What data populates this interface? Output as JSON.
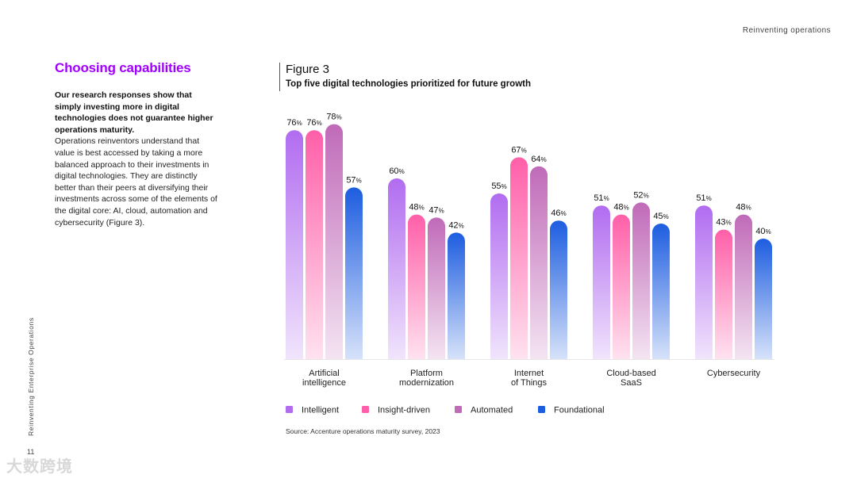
{
  "header": {
    "section": "Reinventing operations"
  },
  "side": {
    "vertical_title": "Reinventing Enterprise Operations",
    "page_number": "11",
    "watermark": "大数跨境"
  },
  "left": {
    "title": "Choosing capabilities",
    "intro_bold": "Our research responses show that simply investing more in digital technologies does not guarantee higher operations maturity.",
    "body": "Operations reinventors understand that value is best accessed by taking a more balanced approach to their investments in digital technologies. They are distinctly better than their peers at diversifying their investments across some of the elements of the digital core: AI, cloud, automation and cybersecurity (Figure 3)."
  },
  "figure": {
    "number": "Figure 3",
    "title": "Top five digital technologies prioritized for future growth",
    "source": "Source: Accenture operations maturity survey, 2023"
  },
  "chart_data": {
    "type": "bar",
    "title": "Top five digital technologies prioritized for future growth",
    "unit": "%",
    "categories": [
      [
        "Artificial",
        "intelligence"
      ],
      [
        "Platform",
        "modernization"
      ],
      [
        "Internet",
        "of Things"
      ],
      [
        "Cloud-based",
        "SaaS"
      ],
      [
        "Cybersecurity"
      ]
    ],
    "series": [
      {
        "name": "Intelligent",
        "color": "#b16cf0",
        "values": [
          76,
          60,
          55,
          51,
          51
        ]
      },
      {
        "name": "Insight-driven",
        "color": "#ff5fa8",
        "values": [
          76,
          48,
          67,
          48,
          43
        ]
      },
      {
        "name": "Automated",
        "color": "#c06ab8",
        "values": [
          78,
          47,
          64,
          52,
          48
        ]
      },
      {
        "name": "Foundational",
        "color": "#1d5de0",
        "values": [
          57,
          42,
          46,
          45,
          40
        ]
      }
    ],
    "ylim": [
      0,
      100
    ],
    "legend": "bottom"
  }
}
